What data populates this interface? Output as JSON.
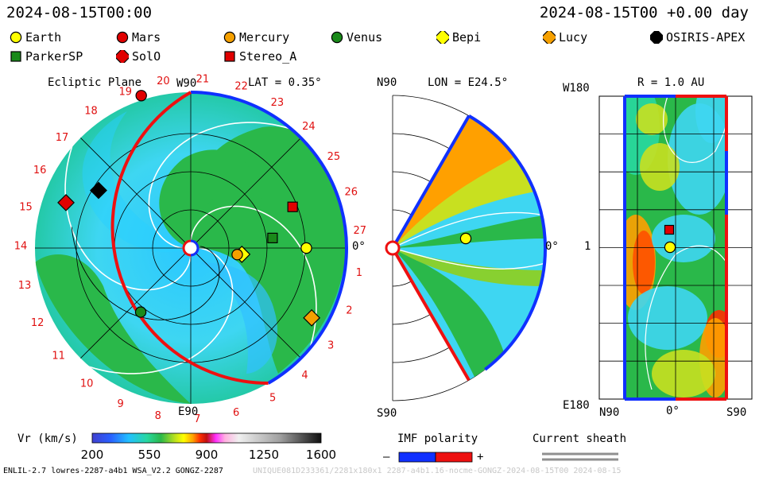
{
  "header": {
    "datetime": "2024-08-15T00:00",
    "elapsed": "2024-08-15T00 +0.00 day"
  },
  "legend": [
    {
      "label": "Earth",
      "shape": "circle",
      "color": "#ffff00"
    },
    {
      "label": "Mars",
      "shape": "circle",
      "color": "#e00000"
    },
    {
      "label": "Mercury",
      "shape": "circle",
      "color": "#f5a000"
    },
    {
      "label": "Venus",
      "shape": "circle",
      "color": "#1a8a1a"
    },
    {
      "label": "Bepi",
      "shape": "diamond",
      "color": "#ffff00"
    },
    {
      "label": "Lucy",
      "shape": "diamond",
      "color": "#f5a000"
    },
    {
      "label": "OSIRIS-APEX",
      "shape": "diamond",
      "color": "#000000"
    },
    {
      "label": "ParkerSP",
      "shape": "square",
      "color": "#1a8a1a"
    },
    {
      "label": "SolO",
      "shape": "diamond",
      "color": "#e00000"
    },
    {
      "label": "Stereo_A",
      "shape": "square",
      "color": "#e00000"
    }
  ],
  "panels": {
    "ecliptic": {
      "title": "Ecliptic Plane",
      "top_label": "W90",
      "lat": "LAT = 0.35°",
      "bottom_label": "E90",
      "right_label": "0°"
    },
    "meridional": {
      "top_label": "N90",
      "lon": "LON = E24.5°",
      "bottom_label": "S90",
      "right_label": "0°"
    },
    "radial": {
      "r": "R = 1.0 AU",
      "top_left": "W180",
      "mid_left": "1",
      "bottom_left": "E180",
      "x_left": "N90",
      "x_mid": "0°",
      "x_right": "S90"
    }
  },
  "chart_data": {
    "type": "heatmap",
    "quantity": "Vr (km/s)",
    "colorbar": {
      "ticks": [
        200,
        550,
        900,
        1250,
        1600
      ],
      "range": [
        200,
        1600
      ]
    },
    "carrington_ticks": [
      "1",
      "2",
      "3",
      "4",
      "5",
      "6",
      "7",
      "8",
      "9",
      "10",
      "11",
      "12",
      "13",
      "14",
      "15",
      "16",
      "17",
      "18",
      "19",
      "20",
      "21",
      "22",
      "23",
      "24",
      "25",
      "26",
      "27"
    ],
    "ecliptic_objects": [
      {
        "name": "Mars",
        "r_au": 1.4,
        "angle_deg": 108
      },
      {
        "name": "OSIRIS-APEX",
        "r_au": 0.95,
        "angle_deg": 148
      },
      {
        "name": "SolO",
        "r_au": 1.16,
        "angle_deg": 160
      },
      {
        "name": "Stereo_A",
        "r_au": 0.96,
        "angle_deg": 22
      },
      {
        "name": "ParkerSP",
        "r_au": 0.72,
        "angle_deg": 7
      },
      {
        "name": "Earth",
        "r_au": 1.01,
        "angle_deg": 0
      },
      {
        "name": "Bepi",
        "r_au": 0.45,
        "angle_deg": -7
      },
      {
        "name": "Mercury",
        "r_au": 0.41,
        "angle_deg": -8
      },
      {
        "name": "Venus",
        "r_au": 0.71,
        "angle_deg": -128
      },
      {
        "name": "Lucy",
        "r_au": 1.22,
        "angle_deg": -30
      }
    ]
  },
  "bottom": {
    "imf_title": "IMF polarity",
    "imf_minus": "–",
    "imf_plus": "+",
    "sheath_title": "Current sheath",
    "footer_left": "ENLIL-2.7 lowres-2287-a4b1 WSA_V2.2 GONGZ-2287",
    "footer_right": "UNIQUE081D233361/2281x180x1 2287-a4b1.16-nocme-GONGZ-2024-08-15T00  2024-08-15"
  }
}
